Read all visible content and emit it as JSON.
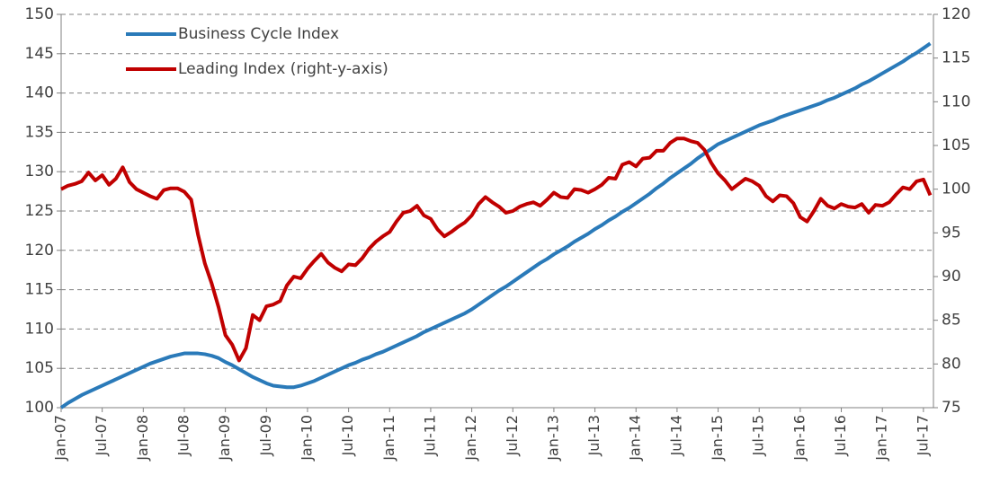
{
  "chart_data": {
    "type": "line",
    "categories": [
      "Jan-07",
      null,
      null,
      null,
      null,
      null,
      "Jul-07",
      null,
      null,
      null,
      null,
      null,
      "Jan-08",
      null,
      null,
      null,
      null,
      null,
      "Jul-08",
      null,
      null,
      null,
      null,
      null,
      "Jan-09",
      null,
      null,
      null,
      null,
      null,
      "Jul-09",
      null,
      null,
      null,
      null,
      null,
      "Jan-10",
      null,
      null,
      null,
      null,
      null,
      "Jul-10",
      null,
      null,
      null,
      null,
      null,
      "Jan-11",
      null,
      null,
      null,
      null,
      null,
      "Jul-11",
      null,
      null,
      null,
      null,
      null,
      "Jan-12",
      null,
      null,
      null,
      null,
      null,
      "Jul-12",
      null,
      null,
      null,
      null,
      null,
      "Jan-13",
      null,
      null,
      null,
      null,
      null,
      "Jul-13",
      null,
      null,
      null,
      null,
      null,
      "Jan-14",
      null,
      null,
      null,
      null,
      null,
      "Jul-14",
      null,
      null,
      null,
      null,
      null,
      "Jan-15",
      null,
      null,
      null,
      null,
      null,
      "Jul-15",
      null,
      null,
      null,
      null,
      null,
      "Jan-16",
      null,
      null,
      null,
      null,
      null,
      "Jul-16",
      null,
      null,
      null,
      null,
      null,
      "Jan-17",
      null,
      null,
      null,
      null,
      null,
      "Jul-17",
      null
    ],
    "series": [
      {
        "name": "Business Cycle Index",
        "color": "#2a7ab9",
        "axis": "y",
        "values": [
          100,
          100.6,
          101.1,
          101.6,
          102.0,
          102.4,
          102.8,
          103.2,
          103.6,
          104.0,
          104.4,
          104.8,
          105.2,
          105.6,
          105.9,
          106.2,
          106.5,
          106.7,
          106.9,
          106.9,
          106.9,
          106.8,
          106.6,
          106.3,
          105.8,
          105.4,
          104.9,
          104.4,
          103.9,
          103.5,
          103.1,
          102.8,
          102.7,
          102.6,
          102.6,
          102.8,
          103.1,
          103.4,
          103.8,
          104.2,
          104.6,
          105.0,
          105.4,
          105.7,
          106.1,
          106.4,
          106.8,
          107.1,
          107.5,
          107.9,
          108.3,
          108.7,
          109.1,
          109.6,
          110.0,
          110.4,
          110.8,
          111.2,
          111.6,
          112.0,
          112.5,
          113.1,
          113.7,
          114.3,
          114.9,
          115.4,
          116.0,
          116.6,
          117.2,
          117.8,
          118.4,
          118.9,
          119.5,
          120.0,
          120.5,
          121.1,
          121.6,
          122.1,
          122.7,
          123.2,
          123.8,
          124.3,
          124.9,
          125.4,
          126.0,
          126.6,
          127.2,
          127.9,
          128.5,
          129.2,
          129.8,
          130.4,
          131.0,
          131.7,
          132.3,
          132.9,
          133.5,
          133.9,
          134.3,
          134.7,
          135.1,
          135.5,
          135.9,
          136.2,
          136.5,
          136.9,
          137.2,
          137.5,
          137.8,
          138.1,
          138.4,
          138.7,
          139.1,
          139.4,
          139.8,
          140.2,
          140.6,
          141.1,
          141.5,
          142.0,
          142.5,
          143.0,
          143.5,
          144.0,
          144.6,
          145.1,
          145.7,
          146.3
        ]
      },
      {
        "name": "Leading Index (right-y-axis)",
        "color": "#c00000",
        "axis": "y2",
        "values": [
          100,
          100.4,
          100.6,
          100.9,
          101.9,
          101.0,
          101.6,
          100.5,
          101.2,
          102.5,
          100.8,
          100.0,
          99.6,
          99.2,
          98.9,
          99.9,
          100.1,
          100.1,
          99.7,
          98.8,
          94.8,
          91.5,
          89.2,
          86.5,
          83.3,
          82.2,
          80.4,
          81.8,
          85.6,
          85.0,
          86.6,
          86.8,
          87.2,
          89.0,
          90.0,
          89.8,
          90.9,
          91.8,
          92.6,
          91.6,
          91.0,
          90.6,
          91.4,
          91.3,
          92.1,
          93.2,
          94.0,
          94.6,
          95.1,
          96.3,
          97.3,
          97.5,
          98.1,
          97.0,
          96.6,
          95.4,
          94.6,
          95.1,
          95.7,
          96.2,
          97.0,
          98.3,
          99.1,
          98.5,
          98.0,
          97.3,
          97.5,
          98.0,
          98.3,
          98.5,
          98.1,
          98.8,
          99.6,
          99.1,
          99.0,
          100.0,
          99.9,
          99.6,
          100.0,
          100.5,
          101.3,
          101.2,
          102.8,
          103.1,
          102.6,
          103.5,
          103.6,
          104.4,
          104.4,
          105.3,
          105.8,
          105.8,
          105.5,
          105.3,
          104.5,
          103.0,
          101.8,
          101.0,
          100.0,
          100.6,
          101.2,
          100.9,
          100.4,
          99.2,
          98.6,
          99.3,
          99.2,
          98.4,
          96.8,
          96.3,
          97.5,
          98.9,
          98.1,
          97.8,
          98.3,
          98.0,
          97.9,
          98.3,
          97.3,
          98.2,
          98.1,
          98.5,
          99.4,
          100.2,
          100.0,
          100.9,
          101.1,
          99.3
        ]
      }
    ],
    "ylim": [
      100,
      150
    ],
    "yticks": [
      100,
      105,
      110,
      115,
      120,
      125,
      130,
      135,
      140,
      145,
      150
    ],
    "y2lim": [
      75,
      120
    ],
    "y2ticks": [
      75,
      80,
      85,
      90,
      95,
      100,
      105,
      110,
      115,
      120
    ],
    "grid": true,
    "legend": "top-left"
  }
}
